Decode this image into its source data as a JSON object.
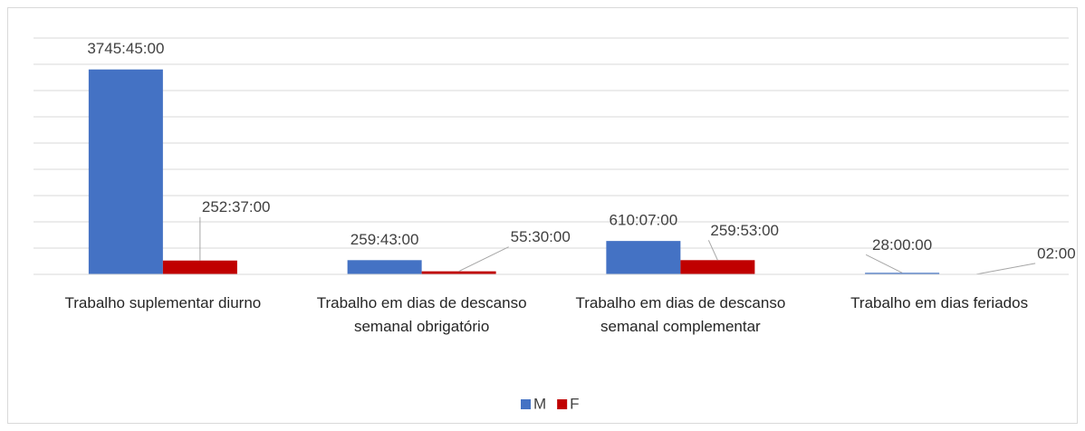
{
  "chart_data": {
    "type": "bar",
    "categories": [
      "Trabalho suplementar diurno",
      "Trabalho em dias de descanso semanal obrigatório",
      "Trabalho em dias de descanso semanal complementar",
      "Trabalho em dias feriados"
    ],
    "series": [
      {
        "name": "M",
        "color": "#4472c4",
        "values": [
          3745.75,
          259.7167,
          610.1167,
          28
        ],
        "value_labels": [
          "3745:45:00",
          "259:43:00",
          "610:07:00",
          "28:00:00"
        ]
      },
      {
        "name": "F",
        "color": "#c00000",
        "values": [
          252.6167,
          55.5,
          259.8833,
          2
        ],
        "value_labels": [
          "252:37:00",
          "55:30:00",
          "259:53:00",
          "02:00"
        ]
      }
    ],
    "ylim": [
      0,
      4320
    ],
    "yticks": [
      0,
      480,
      960,
      1440,
      1920,
      2400,
      2880,
      3360,
      3840,
      4320
    ],
    "grid": true
  }
}
